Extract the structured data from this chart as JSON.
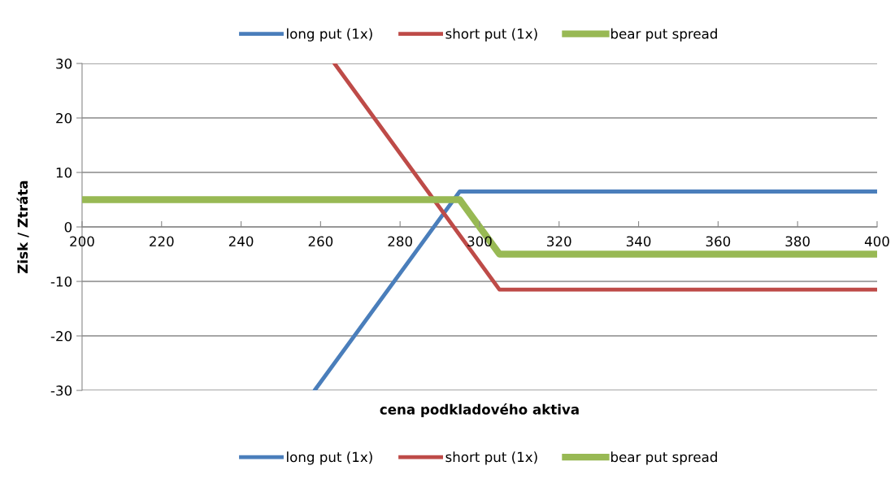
{
  "chart_data": {
    "type": "line",
    "xlabel": "cena podkladového aktiva",
    "ylabel": "Zisk / Ztráta",
    "xlim": [
      200,
      400
    ],
    "xticks": [
      200,
      220,
      240,
      260,
      280,
      300,
      320,
      340,
      360,
      380,
      400
    ],
    "ylim": [
      -30,
      30
    ],
    "yticks": [
      -30,
      -20,
      -10,
      0,
      10,
      20,
      30
    ],
    "grid": "y",
    "legend": [
      "top",
      "bottom"
    ],
    "marker": "none",
    "line_style": "solid",
    "series": [
      {
        "name": "long put (1x)",
        "color": "#4a7ebb",
        "x": [
          258.5,
          295,
          400
        ],
        "values": [
          -30,
          6.5,
          6.5
        ]
      },
      {
        "name": "short put (1x)",
        "color": "#be4b48",
        "x": [
          263.5,
          305,
          400
        ],
        "values": [
          30,
          -11.5,
          -11.5
        ]
      },
      {
        "name": "bear put spread",
        "color": "#98b954",
        "x": [
          200,
          295,
          305,
          400
        ],
        "values": [
          5,
          5,
          -5,
          -5
        ]
      }
    ]
  }
}
